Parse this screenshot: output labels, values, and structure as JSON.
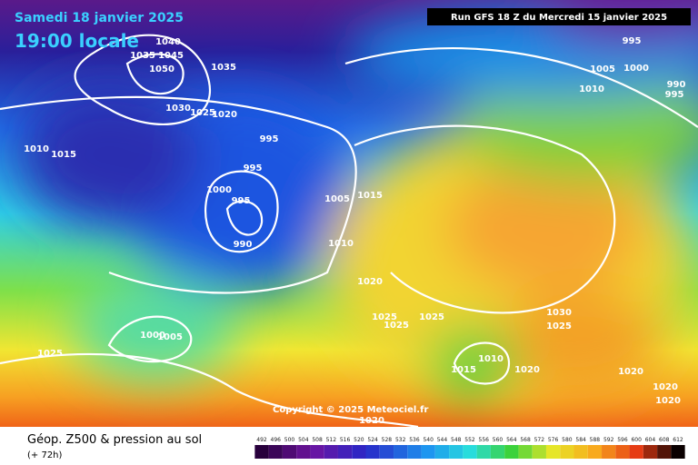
{
  "header": {
    "date": "Samedi 18 janvier 2025",
    "time": "19:00 locale",
    "run": "Run GFS 18 Z du Mercredi 15 janvier 2025"
  },
  "copyright": "Copyright © 2025 Meteociel.fr",
  "footer": {
    "title": "Géop. Z500 & pression au sol",
    "subtitle": "(+ 72h)"
  },
  "scale": [
    492,
    496,
    500,
    504,
    508,
    512,
    516,
    520,
    524,
    528,
    532,
    536,
    540,
    544,
    548,
    552,
    556,
    560,
    564,
    568,
    572,
    576,
    580,
    584,
    588,
    592,
    596,
    600,
    604,
    608,
    612
  ],
  "isobar_labels": [
    1040,
    1035,
    1045,
    1050,
    1035,
    1030,
    1025,
    1020,
    995,
    995,
    1000,
    995,
    990,
    1010,
    1015,
    1005,
    1015,
    1010,
    1020,
    1025,
    1025,
    1025,
    1000,
    1005,
    1025,
    1010,
    1015,
    1020,
    1030,
    1025,
    1020,
    1020,
    1020,
    1020,
    1005,
    1000,
    1010,
    995,
    990,
    995
  ]
}
